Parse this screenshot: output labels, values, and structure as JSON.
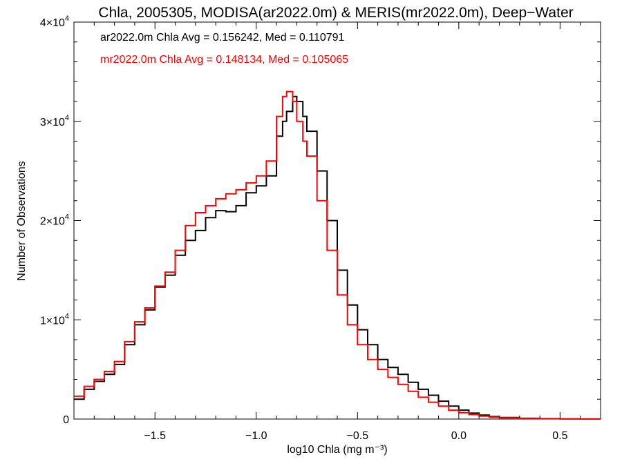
{
  "chart_data": {
    "type": "line",
    "title": "Chla, 2005305, MODISA(ar2022.0m) & MERIS(mr2022.0m), Deep−Water",
    "xlabel": "log10 Chla (mg m⁻³)",
    "ylabel": "Number of Observations",
    "xlim": [
      -1.9,
      0.7
    ],
    "ylim": [
      0,
      40000
    ],
    "xticks": [
      -1.5,
      -1.0,
      -0.5,
      0.0,
      0.5
    ],
    "xtick_labels": [
      "−1.5",
      "−1.0",
      "−0.5",
      "0.0",
      "0.5"
    ],
    "yticks": [
      0,
      10000,
      20000,
      30000,
      40000
    ],
    "ytick_labels": [
      {
        "base": "0",
        "exp": ""
      },
      {
        "base": "1×10",
        "exp": "4"
      },
      {
        "base": "2×10",
        "exp": "4"
      },
      {
        "base": "3×10",
        "exp": "4"
      },
      {
        "base": "4×10",
        "exp": "4"
      }
    ],
    "grid": false,
    "legend_placement": "top-left",
    "step": true,
    "series": [
      {
        "name": "ar2022.0m Chla Avg = 0.156242, Med = 0.110791",
        "color": "#000000",
        "x": [
          -1.9,
          -1.85,
          -1.8,
          -1.75,
          -1.7,
          -1.65,
          -1.6,
          -1.55,
          -1.5,
          -1.45,
          -1.4,
          -1.35,
          -1.3,
          -1.25,
          -1.2,
          -1.15,
          -1.1,
          -1.05,
          -1.0,
          -0.95,
          -0.9,
          -0.87,
          -0.85,
          -0.82,
          -0.8,
          -0.77,
          -0.75,
          -0.7,
          -0.65,
          -0.6,
          -0.55,
          -0.5,
          -0.45,
          -0.4,
          -0.35,
          -0.3,
          -0.25,
          -0.2,
          -0.15,
          -0.1,
          -0.05,
          0.0,
          0.05,
          0.1,
          0.15,
          0.2,
          0.3,
          0.4,
          0.5,
          0.6,
          0.7
        ],
        "y": [
          2000,
          3000,
          3800,
          4500,
          5500,
          7500,
          9500,
          11000,
          13300,
          14500,
          16500,
          18000,
          19000,
          20300,
          21000,
          20900,
          21500,
          22800,
          23500,
          24500,
          28500,
          30000,
          31000,
          32500,
          32000,
          30500,
          29000,
          25000,
          20000,
          15000,
          11500,
          9000,
          7500,
          6000,
          5200,
          4500,
          3700,
          3000,
          2400,
          1800,
          1300,
          900,
          600,
          400,
          250,
          150,
          80,
          40,
          20,
          10,
          5
        ]
      },
      {
        "name": "mr2022.0m Chla Avg = 0.148134, Med = 0.105065",
        "color": "#ff0000",
        "x": [
          -1.9,
          -1.85,
          -1.8,
          -1.75,
          -1.7,
          -1.65,
          -1.6,
          -1.55,
          -1.5,
          -1.45,
          -1.4,
          -1.35,
          -1.3,
          -1.25,
          -1.2,
          -1.15,
          -1.1,
          -1.05,
          -1.0,
          -0.95,
          -0.9,
          -0.87,
          -0.85,
          -0.82,
          -0.8,
          -0.77,
          -0.75,
          -0.7,
          -0.65,
          -0.6,
          -0.55,
          -0.5,
          -0.45,
          -0.4,
          -0.35,
          -0.3,
          -0.25,
          -0.2,
          -0.15,
          -0.1,
          -0.05,
          0.0,
          0.05,
          0.1,
          0.15,
          0.2,
          0.3,
          0.4,
          0.5,
          0.6,
          0.7
        ],
        "y": [
          2300,
          3300,
          4000,
          4800,
          5800,
          7800,
          9800,
          11200,
          13400,
          14800,
          17000,
          19500,
          20800,
          21500,
          22200,
          22700,
          23100,
          23800,
          24500,
          26000,
          30500,
          32500,
          33000,
          32000,
          30000,
          28000,
          26500,
          22000,
          17000,
          12500,
          9500,
          7500,
          6000,
          5000,
          4200,
          3500,
          2800,
          2200,
          1700,
          1300,
          900,
          650,
          450,
          300,
          200,
          120,
          60,
          30,
          15,
          8,
          4
        ]
      }
    ]
  }
}
